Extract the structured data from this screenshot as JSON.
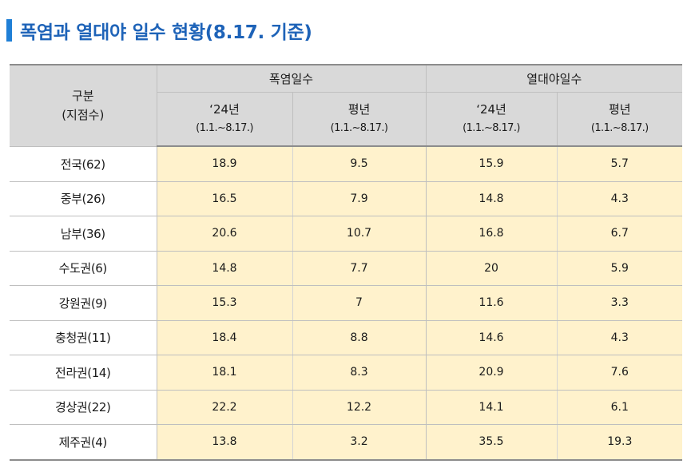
{
  "title": "폭염과 열대야 일수 현황(8.17. 기준)",
  "header": {
    "corner_line1": "구분",
    "corner_line2": "(지점수)",
    "group1": "폭염일수",
    "group2": "열대야일수",
    "col_2024": "‘24년",
    "col_normal": "평년",
    "period": "(1.1.~8.17.)"
  },
  "rows": [
    {
      "region": "전국(62)",
      "heat_2024": "18.9",
      "heat_normal": "9.5",
      "tropical_2024": "15.9",
      "tropical_normal": "5.7"
    },
    {
      "region": "중부(26)",
      "heat_2024": "16.5",
      "heat_normal": "7.9",
      "tropical_2024": "14.8",
      "tropical_normal": "4.3"
    },
    {
      "region": "남부(36)",
      "heat_2024": "20.6",
      "heat_normal": "10.7",
      "tropical_2024": "16.8",
      "tropical_normal": "6.7"
    },
    {
      "region": "수도권(6)",
      "heat_2024": "14.8",
      "heat_normal": "7.7",
      "tropical_2024": "20",
      "tropical_normal": "5.9"
    },
    {
      "region": "강원권(9)",
      "heat_2024": "15.3",
      "heat_normal": "7",
      "tropical_2024": "11.6",
      "tropical_normal": "3.3"
    },
    {
      "region": "충청권(11)",
      "heat_2024": "18.4",
      "heat_normal": "8.8",
      "tropical_2024": "14.6",
      "tropical_normal": "4.3"
    },
    {
      "region": "전라권(14)",
      "heat_2024": "18.1",
      "heat_normal": "8.3",
      "tropical_2024": "20.9",
      "tropical_normal": "7.6"
    },
    {
      "region": "경상권(22)",
      "heat_2024": "22.2",
      "heat_normal": "12.2",
      "tropical_2024": "14.1",
      "tropical_normal": "6.1"
    },
    {
      "region": "제주권(4)",
      "heat_2024": "13.8",
      "heat_normal": "3.2",
      "tropical_2024": "35.5",
      "tropical_normal": "19.3"
    }
  ],
  "colors": {
    "title": "#1e63b8",
    "accent_bar": "#1f7fd6",
    "header_bg": "#d9d9d9",
    "value_bg": "#fff2cc"
  }
}
